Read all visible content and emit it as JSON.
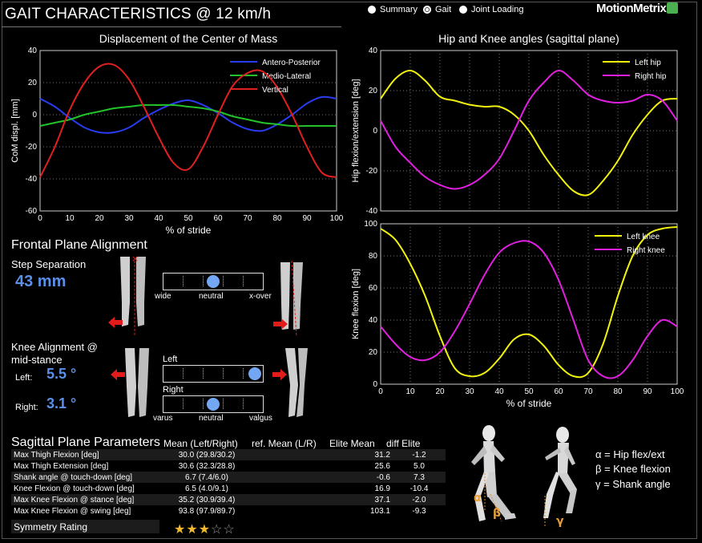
{
  "header": {
    "title": "GAIT CHARACTERISTICS @ 12 km/h",
    "nav": [
      {
        "label": "Summary",
        "selected": false
      },
      {
        "label": "Gait",
        "selected": true
      },
      {
        "label": "Joint Loading",
        "selected": false
      }
    ],
    "logo": "MotionMetrix"
  },
  "charts": {
    "com": {
      "title": "Displacement of the Center of Mass",
      "ylabel": "CoM displ. [mm]",
      "xlabel": "% of stride"
    },
    "hip": {
      "title": "Hip and Knee angles (sagittal plane)",
      "ylabel": "Hip flexion/extension [deg]"
    },
    "knee": {
      "ylabel": "Knee flexion [deg]",
      "xlabel": "% of stride"
    }
  },
  "chart_data": [
    {
      "type": "line",
      "title": "Displacement of the Center of Mass",
      "xlabel": "% of stride",
      "ylabel": "CoM displ. [mm]",
      "xlim": [
        0,
        100
      ],
      "ylim": [
        -60,
        40
      ],
      "xticks": [
        0,
        10,
        20,
        30,
        40,
        50,
        60,
        70,
        80,
        90,
        100
      ],
      "yticks": [
        -60,
        -40,
        -20,
        0,
        20,
        40
      ],
      "grid": "horizontal dotted",
      "legend": "top-right",
      "x": [
        0,
        5,
        10,
        15,
        20,
        25,
        30,
        35,
        40,
        45,
        50,
        55,
        60,
        65,
        70,
        75,
        80,
        85,
        90,
        95,
        100
      ],
      "series": [
        {
          "name": "Antero-Posterior",
          "color": "#2a3cf0",
          "values": [
            10,
            5,
            -2,
            -8,
            -11,
            -11,
            -8,
            -2,
            3,
            7,
            9,
            6,
            1,
            -5,
            -9,
            -10,
            -6,
            0,
            7,
            11,
            10
          ]
        },
        {
          "name": "Medio-Lateral",
          "color": "#22c22a",
          "values": [
            -7,
            -5,
            -3,
            0,
            2,
            4,
            5,
            6,
            6,
            6,
            5,
            4,
            2,
            -1,
            -3,
            -5,
            -6,
            -7,
            -7,
            -7,
            -7
          ]
        },
        {
          "name": "Vertical",
          "color": "#e02020",
          "values": [
            -39,
            -20,
            3,
            20,
            30,
            31,
            22,
            5,
            -14,
            -30,
            -34,
            -20,
            0,
            18,
            26,
            27,
            17,
            0,
            -20,
            -36,
            -39
          ]
        }
      ]
    },
    {
      "type": "line",
      "title": "Hip and Knee angles (sagittal plane)",
      "ylabel": "Hip flexion/extension [deg]",
      "xlim": [
        0,
        100
      ],
      "ylim": [
        -40,
        40
      ],
      "yticks": [
        -40,
        -20,
        0,
        20,
        40
      ],
      "grid": "dotted",
      "legend": "top-right",
      "x": [
        0,
        5,
        10,
        15,
        20,
        25,
        30,
        35,
        40,
        45,
        50,
        55,
        60,
        65,
        70,
        75,
        80,
        85,
        90,
        95,
        100
      ],
      "series": [
        {
          "name": "Left hip",
          "color": "#f2f20f",
          "values": [
            16,
            26,
            30,
            25,
            17,
            15,
            13,
            12,
            12,
            8,
            0,
            -12,
            -22,
            -30,
            -32,
            -25,
            -15,
            -2,
            8,
            15,
            16
          ]
        },
        {
          "name": "Right hip",
          "color": "#e21fe0",
          "values": [
            5,
            -8,
            -16,
            -23,
            -27,
            -29,
            -27,
            -22,
            -14,
            0,
            15,
            24,
            30,
            25,
            18,
            15,
            14,
            15,
            18,
            15,
            5
          ]
        }
      ]
    },
    {
      "type": "line",
      "ylabel": "Knee flexion [deg]",
      "xlabel": "% of stride",
      "xlim": [
        0,
        100
      ],
      "ylim": [
        0,
        100
      ],
      "xticks": [
        0,
        10,
        20,
        30,
        40,
        50,
        60,
        70,
        80,
        90,
        100
      ],
      "yticks": [
        0,
        20,
        40,
        60,
        80,
        100
      ],
      "grid": "dotted",
      "legend": "top-right",
      "x": [
        0,
        5,
        10,
        15,
        20,
        25,
        30,
        35,
        40,
        45,
        50,
        55,
        60,
        65,
        70,
        75,
        80,
        85,
        90,
        95,
        100
      ],
      "series": [
        {
          "name": "Left knee",
          "color": "#f2f20f",
          "values": [
            97,
            90,
            75,
            55,
            30,
            10,
            5,
            7,
            16,
            28,
            31,
            24,
            12,
            5,
            7,
            25,
            55,
            80,
            93,
            97,
            98
          ]
        },
        {
          "name": "Right knee",
          "color": "#e21fe0",
          "values": [
            36,
            25,
            17,
            15,
            20,
            33,
            50,
            68,
            82,
            88,
            89,
            82,
            65,
            40,
            15,
            5,
            5,
            15,
            30,
            40,
            36
          ]
        }
      ]
    }
  ],
  "frontal": {
    "title": "Frontal Plane Alignment",
    "step_label": "Step Separation",
    "step_value": "43 mm",
    "step_scale": [
      "wide",
      "neutral",
      "x-over"
    ],
    "step_position": 0.5,
    "knee_label_1": "Knee Alignment @",
    "knee_label_2": "mid-stance",
    "left_label": "Left:",
    "left_value": "5.5 °",
    "right_label": "Right:",
    "right_value": "3.1 °",
    "slider_left": "Left",
    "slider_right": "Right",
    "knee_left_position": 0.92,
    "knee_right_position": 0.5,
    "knee_scale": [
      "varus",
      "neutral",
      "valgus"
    ]
  },
  "sagittal": {
    "title": "Sagittal Plane Parameters",
    "columns": [
      "Mean (Left/Right)",
      "ref. Mean (L/R)",
      "Elite Mean",
      "diff Elite"
    ],
    "rows": [
      {
        "name": "Max Thigh Flexion [deg]",
        "mean": "30.0 (29.8/30.2)",
        "ref": "",
        "elite": "31.2",
        "diff": "-1.2"
      },
      {
        "name": "Max Thigh Extension [deg]",
        "mean": "30.6 (32.3/28.8)",
        "ref": "",
        "elite": "25.6",
        "diff": "5.0"
      },
      {
        "name": "Shank angle @ touch-down [deg]",
        "mean": "6.7 (7.4/6.0)",
        "ref": "",
        "elite": "-0.6",
        "diff": "7.3"
      },
      {
        "name": "Knee Flexion @ touch-down [deg]",
        "mean": "6.5 (4.0/9.1)",
        "ref": "",
        "elite": "16.9",
        "diff": "-10.4"
      },
      {
        "name": "Max Knee Flexion @ stance [deg]",
        "mean": "35.2 (30.9/39.4)",
        "ref": "",
        "elite": "37.1",
        "diff": "-2.0"
      },
      {
        "name": "Max Knee Flexion @ swing [deg]",
        "mean": "93.8 (97.9/89.7)",
        "ref": "",
        "elite": "103.1",
        "diff": "-9.3"
      }
    ],
    "symmetry_label": "Symmetry Rating",
    "symmetry_stars": 3,
    "symmetry_max": 5
  },
  "figure_labels": {
    "alpha": "α",
    "beta": "β",
    "gamma": "γ",
    "legend": [
      "α = Hip flex/ext",
      "β = Knee flexion",
      "γ = Shank angle"
    ]
  }
}
